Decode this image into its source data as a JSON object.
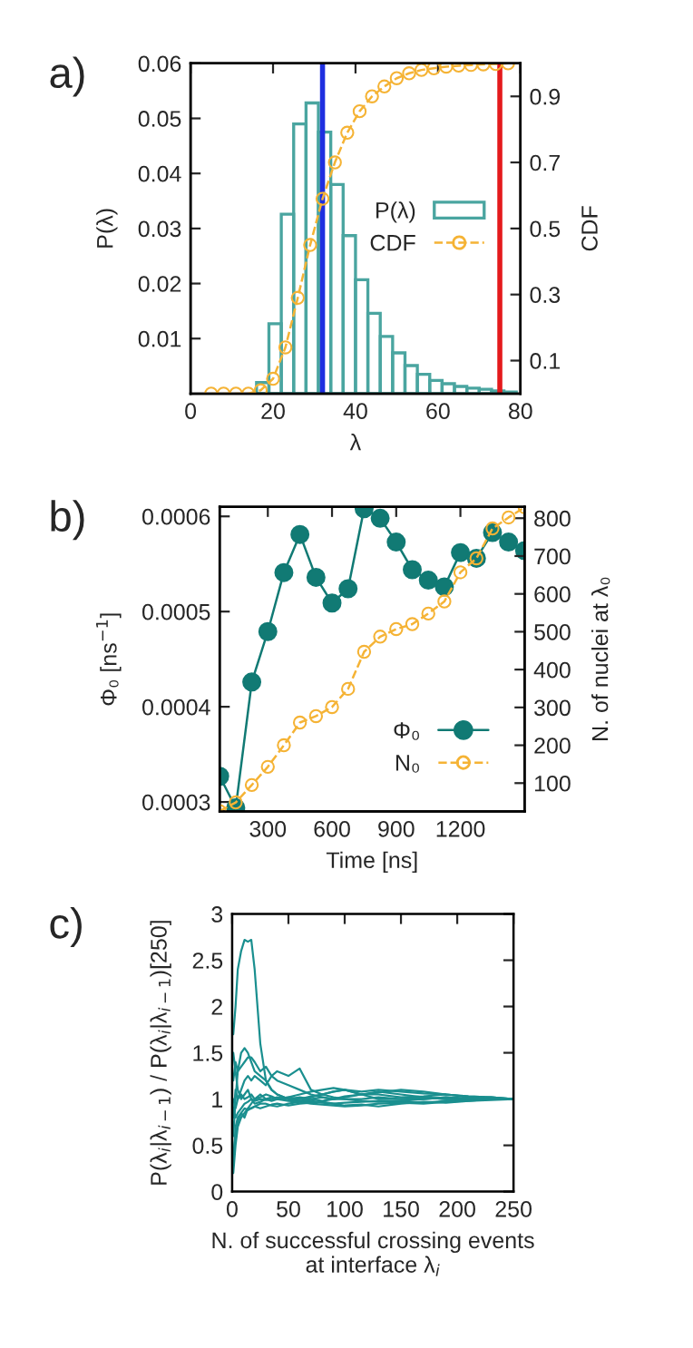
{
  "chart_data": [
    {
      "type": "histogram",
      "title": "a)",
      "xlabel": "λ",
      "ylabel": "P(λ)",
      "y2label": "CDF",
      "bins": [
        16,
        19,
        22,
        25,
        28,
        31,
        34,
        37,
        40,
        43,
        46,
        49,
        52,
        55,
        58,
        61,
        64,
        67,
        70,
        73,
        76,
        79
      ],
      "series": [
        {
          "name": "P(λ)",
          "type": "histogram",
          "color": "#4aa5a0",
          "values": [
            0.002,
            0.0127,
            0.0326,
            0.049,
            0.0528,
            0.0475,
            0.038,
            0.0287,
            0.0207,
            0.0146,
            0.0104,
            0.0074,
            0.0051,
            0.0035,
            0.0024,
            0.0018,
            0.0013,
            0.001,
            0.0008,
            0.0005,
            0.0003
          ]
        },
        {
          "name": "CDF",
          "type": "line",
          "axis": "y2",
          "color": "#f5b335",
          "marker": "circle",
          "line_style": "dashed",
          "x": [
            5,
            8,
            11,
            14,
            17,
            20,
            23,
            26,
            29,
            32,
            35,
            38,
            41,
            44,
            47,
            50,
            53,
            56,
            59,
            62,
            65,
            68,
            71,
            74,
            77
          ],
          "values": [
            0,
            0,
            0,
            0,
            0.01,
            0.045,
            0.14,
            0.29,
            0.45,
            0.59,
            0.7,
            0.79,
            0.855,
            0.9,
            0.93,
            0.955,
            0.97,
            0.98,
            0.985,
            0.99,
            0.993,
            0.995,
            0.997,
            0.998,
            1.0
          ]
        }
      ],
      "xlim": [
        0,
        80
      ],
      "xticks": [
        0,
        20,
        40,
        60,
        80
      ],
      "ylim": [
        0,
        0.06
      ],
      "yticks": [
        0.01,
        0.02,
        0.03,
        0.04,
        0.05,
        0.06
      ],
      "y2lim": [
        0,
        1
      ],
      "y2ticks": [
        0.1,
        0.3,
        0.5,
        0.7,
        0.9
      ],
      "ref_lines": [
        {
          "axis": "x",
          "value": 32,
          "color": "#1f2fe0"
        },
        {
          "axis": "x",
          "value": 75,
          "color": "#e41a1c"
        }
      ],
      "legend": "center right",
      "grid": false
    },
    {
      "type": "line",
      "title": "b)",
      "xlabel": "Time [ns]",
      "ylabel": "Φ₀ [ns$^{−1}$]",
      "y2label": "N. of nuclei at λ₀",
      "x": [
        75,
        150,
        225,
        300,
        375,
        450,
        525,
        600,
        675,
        750,
        825,
        900,
        975,
        1050,
        1125,
        1200,
        1275,
        1350,
        1425,
        1500
      ],
      "series": [
        {
          "name": "Φ₀",
          "color": "#117a74",
          "marker": "circle",
          "line_style": "solid",
          "values": [
            0.000327,
            0.000294,
            0.000426,
            0.000479,
            0.000541,
            0.000581,
            0.000536,
            0.000509,
            0.000524,
            0.000608,
            0.000598,
            0.000573,
            0.000544,
            0.000533,
            0.000526,
            0.000562,
            0.000556,
            0.000583,
            0.000573,
            0.000564
          ]
        },
        {
          "name": "N₀",
          "axis": "y2",
          "color": "#f5b335",
          "marker": "circle",
          "line_style": "dashed",
          "values": [
            26,
            49,
            95,
            143,
            200,
            260,
            277,
            301,
            349,
            447,
            487,
            507,
            520,
            548,
            580,
            657,
            694,
            773,
            802,
            829
          ]
        }
      ],
      "xlim": [
        75,
        1500
      ],
      "xticks": [
        300,
        600,
        900,
        1200
      ],
      "ylim": [
        0.00029,
        0.00061
      ],
      "yticks": [
        0.0003,
        0.0004,
        0.0005,
        0.0006
      ],
      "y2lim": [
        25,
        830
      ],
      "y2ticks": [
        100,
        200,
        300,
        400,
        500,
        600,
        700,
        800
      ],
      "legend": "lower right",
      "grid": false
    },
    {
      "type": "line",
      "title": "c)",
      "xlabel": "N. of successful crossing events\nat interface λ$_{i}$",
      "ylabel": "P(λ$_{i}$|λ$_{i−1}$) / P(λ$_{i}$|λ$_{i−1}$)[250]",
      "x": [
        1,
        3,
        5,
        8,
        11,
        14,
        17,
        20,
        25,
        30,
        35,
        40,
        50,
        60,
        70,
        80,
        90,
        100,
        115,
        130,
        150,
        170,
        190,
        210,
        230,
        250
      ],
      "series": [
        {
          "color": "#1a8f8f",
          "values": [
            1.7,
            2.0,
            2.4,
            2.6,
            2.72,
            2.7,
            2.72,
            2.4,
            1.6,
            1.2,
            1.1,
            1.05,
            1.0,
            0.98,
            1.0,
            1.02,
            1.0,
            1.0,
            1.0,
            1.02,
            1.0,
            1.0,
            1.02,
            1.0,
            1.0,
            1.0
          ]
        },
        {
          "color": "#1a8f8f",
          "values": [
            0.6,
            1.0,
            1.3,
            1.5,
            1.55,
            1.5,
            1.4,
            1.3,
            1.25,
            1.2,
            1.1,
            1.05,
            1.0,
            1.0,
            1.02,
            1.05,
            1.08,
            1.1,
            1.05,
            1.05,
            1.02,
            1.03,
            1.05,
            1.02,
            1.0,
            1.0
          ]
        },
        {
          "color": "#1a8f8f",
          "values": [
            1.2,
            1.4,
            1.3,
            1.35,
            1.4,
            1.45,
            1.45,
            1.4,
            1.3,
            1.35,
            1.25,
            1.2,
            1.15,
            1.1,
            1.05,
            1.02,
            1.0,
            1.02,
            1.05,
            1.08,
            1.05,
            1.02,
            1.0,
            1.0,
            1.02,
            1.0
          ]
        },
        {
          "color": "#1a8f8f",
          "values": [
            0.8,
            1.1,
            1.0,
            1.1,
            1.2,
            1.25,
            1.2,
            1.25,
            1.2,
            1.15,
            1.25,
            1.3,
            1.25,
            1.33,
            1.1,
            1.05,
            1.08,
            1.1,
            1.05,
            1.0,
            1.0,
            1.02,
            1.0,
            1.0,
            1.0,
            1.0
          ]
        },
        {
          "color": "#1a8f8f",
          "values": [
            0.2,
            0.5,
            0.7,
            0.8,
            0.85,
            0.9,
            0.9,
            0.92,
            0.95,
            0.95,
            0.93,
            0.92,
            0.95,
            0.97,
            0.98,
            0.96,
            0.95,
            0.96,
            0.97,
            0.98,
            0.97,
            0.96,
            0.98,
            0.99,
            1.0,
            1.0
          ]
        },
        {
          "color": "#1a8f8f",
          "values": [
            0.4,
            0.6,
            0.75,
            0.85,
            0.9,
            0.88,
            0.9,
            0.92,
            0.9,
            0.92,
            0.94,
            0.95,
            0.93,
            0.95,
            0.96,
            0.97,
            0.95,
            0.93,
            0.94,
            0.92,
            0.95,
            0.97,
            0.96,
            0.98,
            1.0,
            1.0
          ]
        },
        {
          "color": "#1a8f8f",
          "values": [
            1.0,
            0.9,
            1.0,
            1.05,
            1.0,
            1.02,
            1.05,
            1.0,
            1.02,
            1.05,
            1.03,
            1.0,
            1.02,
            1.05,
            1.08,
            1.1,
            1.12,
            1.1,
            1.08,
            1.1,
            1.08,
            1.06,
            1.05,
            1.03,
            1.02,
            1.0
          ]
        },
        {
          "color": "#1a8f8f",
          "values": [
            0.9,
            0.8,
            0.85,
            0.9,
            0.95,
            0.97,
            1.0,
            0.98,
            1.0,
            0.99,
            1.0,
            1.02,
            1.0,
            1.02,
            1.0,
            0.98,
            1.0,
            1.03,
            1.05,
            1.07,
            1.1,
            1.08,
            1.05,
            1.03,
            1.02,
            1.0
          ]
        },
        {
          "color": "#1a8f8f",
          "values": [
            1.5,
            1.3,
            1.1,
            1.0,
            1.05,
            1.1,
            1.0,
            0.95,
            0.97,
            1.0,
            1.02,
            1.0,
            0.98,
            0.97,
            0.95,
            0.94,
            0.93,
            0.92,
            0.93,
            0.95,
            0.96,
            0.95,
            0.97,
            0.98,
            0.99,
            1.0
          ]
        },
        {
          "color": "#1a8f8f",
          "values": [
            0.3,
            0.7,
            0.8,
            0.85,
            0.8,
            0.9,
            0.95,
            1.0,
            1.05,
            1.0,
            0.98,
            1.0,
            1.02,
            1.0,
            1.03,
            1.05,
            1.02,
            1.0,
            0.98,
            0.97,
            0.98,
            1.0,
            1.02,
            1.01,
            1.0,
            1.0
          ]
        }
      ],
      "xlim": [
        0,
        250
      ],
      "xticks": [
        0,
        50,
        100,
        150,
        200,
        250
      ],
      "ylim": [
        0,
        3
      ],
      "yticks": [
        0,
        0.5,
        1,
        1.5,
        2,
        2.5,
        3
      ],
      "grid": false
    }
  ]
}
